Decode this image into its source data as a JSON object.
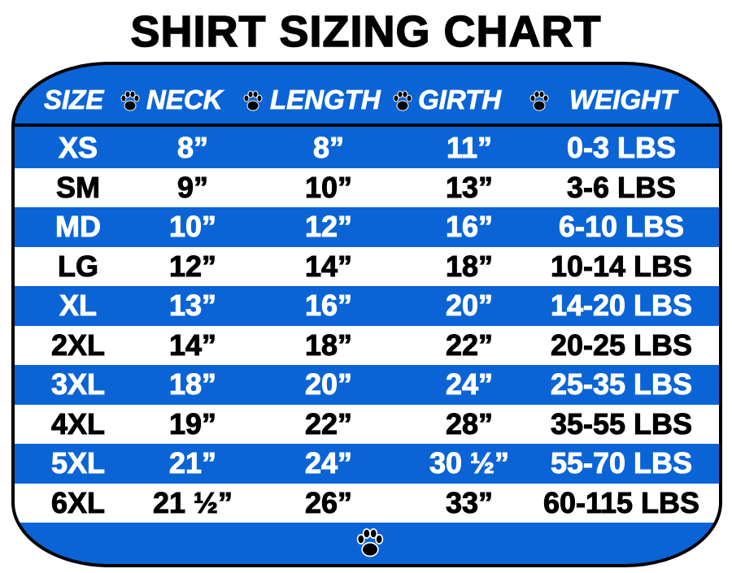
{
  "title": "SHIRT SIZING CHART",
  "colors": {
    "accent_blue": "#0a64d6",
    "border": "#000000"
  },
  "header": [
    "SIZE",
    "NECK",
    "LENGTH",
    "GIRTH",
    "WEIGHT"
  ],
  "icons": {
    "separator": "paw-icon",
    "footer": "paw-icon"
  },
  "rows": [
    [
      "XS",
      "8”",
      "8”",
      "11”",
      "0-3 LBS"
    ],
    [
      "SM",
      "9”",
      "10”",
      "13”",
      "3-6 LBS"
    ],
    [
      "MD",
      "10”",
      "12”",
      "16”",
      "6-10 LBS"
    ],
    [
      "LG",
      "12”",
      "14”",
      "18”",
      "10-14 LBS"
    ],
    [
      "XL",
      "13”",
      "16”",
      "20”",
      "14-20 LBS"
    ],
    [
      "2XL",
      "14”",
      "18”",
      "22”",
      "20-25 LBS"
    ],
    [
      "3XL",
      "18”",
      "20”",
      "24”",
      "25-35 LBS"
    ],
    [
      "4XL",
      "19”",
      "22”",
      "28”",
      "35-55 LBS"
    ],
    [
      "5XL",
      "21”",
      "24”",
      "30 ½”",
      "55-70 LBS"
    ],
    [
      "6XL",
      "21 ½”",
      "26”",
      "33”",
      "60-115 LBS"
    ]
  ]
}
